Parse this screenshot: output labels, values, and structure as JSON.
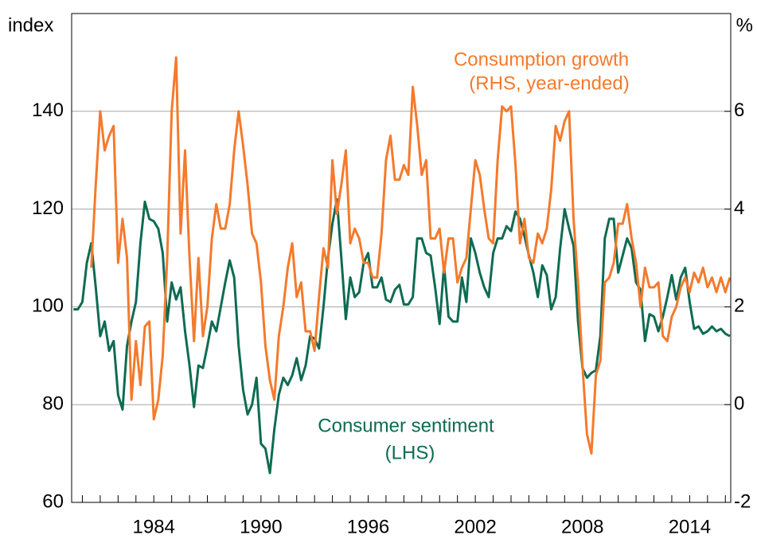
{
  "chart_data": {
    "type": "line",
    "y_label": "index",
    "y2_label": "%",
    "annotations": [
      {
        "text": "Consumption growth",
        "series": 1
      },
      {
        "text": "(RHS, year-ended)",
        "series": 1
      },
      {
        "text": "Consumer sentiment",
        "series": 0
      },
      {
        "text": "(LHS)",
        "series": 0
      }
    ],
    "x": [
      1979.5,
      1979.75,
      1980,
      1980.25,
      1980.5,
      1980.75,
      1981,
      1981.25,
      1981.5,
      1981.75,
      1982,
      1982.25,
      1982.5,
      1982.75,
      1983,
      1983.25,
      1983.5,
      1983.75,
      1984,
      1984.25,
      1984.5,
      1984.75,
      1985,
      1985.25,
      1985.5,
      1985.75,
      1986,
      1986.25,
      1986.5,
      1986.75,
      1987,
      1987.25,
      1987.5,
      1987.75,
      1988,
      1988.25,
      1988.5,
      1988.75,
      1989,
      1989.25,
      1989.5,
      1989.75,
      1990,
      1990.25,
      1990.5,
      1990.75,
      1991,
      1991.25,
      1991.5,
      1991.75,
      1992,
      1992.25,
      1992.5,
      1992.75,
      1993,
      1993.25,
      1993.5,
      1993.75,
      1994,
      1994.25,
      1994.5,
      1994.75,
      1995,
      1995.25,
      1995.5,
      1995.75,
      1996,
      1996.25,
      1996.5,
      1996.75,
      1997,
      1997.25,
      1997.5,
      1997.75,
      1998,
      1998.25,
      1998.5,
      1998.75,
      1999,
      1999.25,
      1999.5,
      1999.75,
      2000,
      2000.25,
      2000.5,
      2000.75,
      2001,
      2001.25,
      2001.5,
      2001.75,
      2002,
      2002.25,
      2002.5,
      2002.75,
      2003,
      2003.25,
      2003.5,
      2003.75,
      2004,
      2004.25,
      2004.5,
      2004.75,
      2005,
      2005.25,
      2005.5,
      2005.75,
      2006,
      2006.25,
      2006.5,
      2006.75,
      2007,
      2007.25,
      2007.5,
      2007.75,
      2008,
      2008.25,
      2008.5,
      2008.75,
      2009,
      2009.25,
      2009.5,
      2009.75,
      2010,
      2010.25,
      2010.5,
      2010.75,
      2011,
      2011.25,
      2011.5,
      2011.75,
      2012,
      2012.25,
      2012.5,
      2012.75,
      2013,
      2013.25,
      2013.5,
      2013.75,
      2014,
      2014.25,
      2014.5,
      2014.75,
      2015,
      2015.25,
      2015.5,
      2015.75,
      2016,
      2016.25
    ],
    "series": [
      {
        "name": "Consumer sentiment",
        "color": "#0e6b52",
        "axis": "y",
        "values": [
          99.5,
          99.5,
          101,
          109,
          113,
          104,
          94,
          97,
          91,
          93,
          82,
          79,
          92,
          97,
          101,
          113,
          121.5,
          118,
          117.5,
          116,
          111,
          97,
          105,
          101.5,
          104,
          95,
          88,
          79.5,
          88,
          87.5,
          92,
          97,
          95,
          100,
          105,
          109.5,
          106,
          92,
          83,
          78,
          80,
          85.5,
          72,
          71,
          66,
          75,
          82,
          85.5,
          84,
          86,
          89.5,
          85,
          88,
          94,
          93.5,
          91.5,
          100,
          110,
          117,
          122,
          110,
          97.5,
          106,
          102,
          103,
          109,
          111,
          104,
          104,
          106,
          101.5,
          101,
          103.5,
          104.5,
          100.5,
          100.5,
          102,
          114,
          114,
          111,
          110.5,
          104,
          96.5,
          108.5,
          98,
          97,
          97,
          106,
          101,
          114,
          111,
          107,
          104,
          102,
          111,
          114,
          114,
          116.5,
          115.5,
          119.5,
          118,
          114.5,
          110.5,
          107,
          102,
          108.5,
          106.5,
          99.5,
          102,
          112,
          120,
          116,
          112.5,
          97,
          87.5,
          85.5,
          86.5,
          87,
          94,
          114,
          118,
          118,
          107,
          110.5,
          114,
          112,
          105,
          103.5,
          93,
          98.5,
          98,
          95,
          98,
          102,
          106.5,
          101.5,
          106,
          108,
          101,
          95.5,
          96,
          94.5,
          95,
          96,
          95,
          95.5,
          94.5,
          94
        ]
      },
      {
        "name": "Consumption growth",
        "color": "#f47a2c",
        "axis": "y2",
        "values": [
          null,
          null,
          null,
          null,
          2.8,
          4.5,
          6.0,
          5.2,
          5.5,
          5.7,
          2.9,
          3.8,
          3.0,
          0.1,
          1.3,
          0.4,
          1.6,
          1.7,
          -0.3,
          0.1,
          1.0,
          3.0,
          6.0,
          7.1,
          3.5,
          5.2,
          3.0,
          1.3,
          3.0,
          1.4,
          2.0,
          3.4,
          4.1,
          3.6,
          3.6,
          4.1,
          5.2,
          6.0,
          5.3,
          4.5,
          3.5,
          3.3,
          2.5,
          1.2,
          0.5,
          0.1,
          1.4,
          2.0,
          2.8,
          3.3,
          2.2,
          2.5,
          1.5,
          1.5,
          1.1,
          2.2,
          3.2,
          2.8,
          5.0,
          3.9,
          4.5,
          5.2,
          3.3,
          3.6,
          3.4,
          2.9,
          2.9,
          2.6,
          2.6,
          3.5,
          5.0,
          5.5,
          4.6,
          4.6,
          4.9,
          4.7,
          6.5,
          5.7,
          4.7,
          5.0,
          3.4,
          3.4,
          3.6,
          2.7,
          3.4,
          3.4,
          2.5,
          2.8,
          3.0,
          4.0,
          5.0,
          4.7,
          4.0,
          3.4,
          3.3,
          5.0,
          6.1,
          6.0,
          6.1,
          4.9,
          3.3,
          3.8,
          3.0,
          2.9,
          3.5,
          3.3,
          3.6,
          4.4,
          5.7,
          5.4,
          5.8,
          6.0,
          3.8,
          2.5,
          0.8,
          -0.6,
          -1.0,
          0.6,
          0.9,
          2.5,
          2.6,
          2.9,
          3.7,
          3.7,
          4.1,
          3.4,
          2.9,
          2.0,
          2.8,
          2.4,
          2.4,
          2.5,
          1.4,
          1.3,
          1.8,
          2.0,
          2.4,
          2.6,
          2.3,
          2.7,
          2.5,
          2.8,
          2.4,
          2.6,
          2.3,
          2.6,
          2.3,
          2.6
        ]
      }
    ],
    "xlim": [
      1979.4,
      2016.3
    ],
    "xticks": [
      1984,
      1990,
      1996,
      2002,
      2008,
      2014
    ],
    "xminorticks": [
      1980,
      1981,
      1982,
      1983,
      1984,
      1985,
      1986,
      1987,
      1988,
      1989,
      1990,
      1991,
      1992,
      1993,
      1994,
      1995,
      1996,
      1997,
      1998,
      1999,
      2000,
      2001,
      2002,
      2003,
      2004,
      2005,
      2006,
      2007,
      2008,
      2009,
      2010,
      2011,
      2012,
      2013,
      2014,
      2015,
      2016
    ],
    "ylim": [
      60,
      160
    ],
    "yticks": [
      60,
      80,
      100,
      120,
      140
    ],
    "y2lim": [
      -2,
      8
    ],
    "y2ticks": [
      -2,
      0,
      2,
      4,
      6
    ],
    "grid": true
  }
}
